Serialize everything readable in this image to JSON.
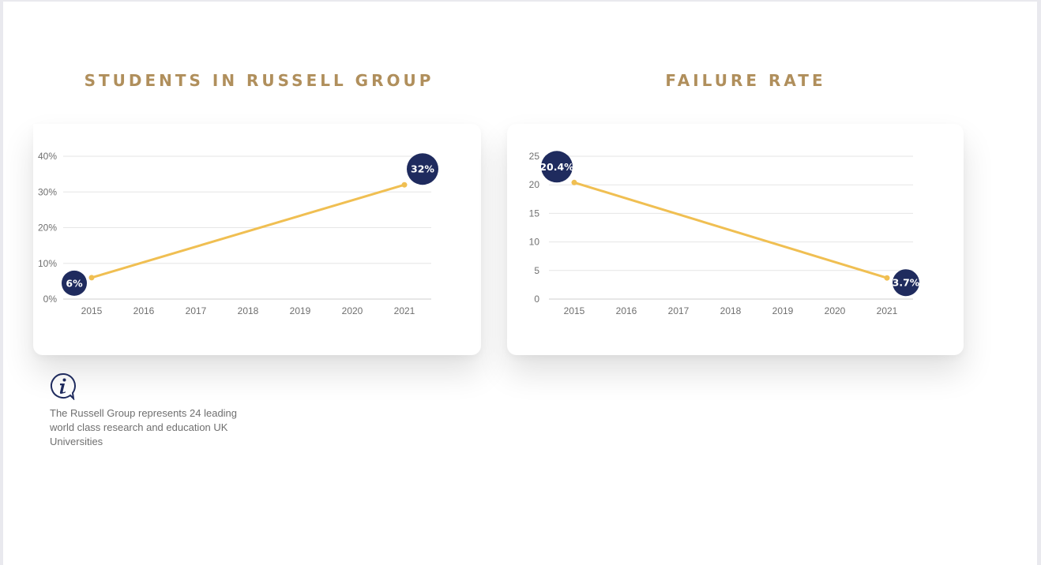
{
  "colors": {
    "title": "#b08f5c",
    "line": "#f0bf52",
    "bubble": "#1f2b5e",
    "grid": "#e6e6e6",
    "axis_text": "#6f6f6f"
  },
  "chart_data": [
    {
      "type": "line",
      "title": "STUDENTS IN RUSSELL GROUP",
      "x": [
        "2015",
        "2016",
        "2017",
        "2018",
        "2019",
        "2020",
        "2021"
      ],
      "y_ticks": [
        "0%",
        "10%",
        "20%",
        "30%",
        "40%"
      ],
      "ylim": [
        0,
        40
      ],
      "grid": true,
      "points": [
        {
          "x": "2015",
          "y": 6,
          "label": "6%"
        },
        {
          "x": "2021",
          "y": 32,
          "label": "32%"
        }
      ]
    },
    {
      "type": "line",
      "title": "FAILURE RATE",
      "x": [
        "2015",
        "2016",
        "2017",
        "2018",
        "2019",
        "2020",
        "2021"
      ],
      "y_ticks": [
        "0",
        "5",
        "10",
        "15",
        "20",
        "25"
      ],
      "ylim": [
        0,
        25
      ],
      "grid": true,
      "points": [
        {
          "x": "2015",
          "y": 20.4,
          "label": "20.4%"
        },
        {
          "x": "2021",
          "y": 3.7,
          "label": "3.7%"
        }
      ]
    }
  ],
  "info": {
    "icon": "info-speech-bubble-icon",
    "text": "The Russell Group represents 24 leading world class research and education UK Universities"
  }
}
